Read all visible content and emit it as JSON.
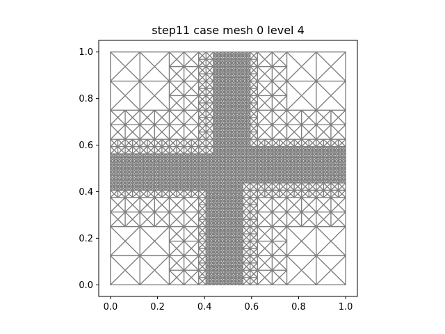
{
  "title": "step11 case mesh 0 level 4",
  "x_ticks": [
    {
      "value": 0.0,
      "label": "0.0"
    },
    {
      "value": 0.2,
      "label": "0.2"
    },
    {
      "value": 0.4,
      "label": "0.4"
    },
    {
      "value": 0.6,
      "label": "0.6"
    },
    {
      "value": 0.8,
      "label": "0.8"
    },
    {
      "value": 1.0,
      "label": "1.0"
    }
  ],
  "y_ticks": [
    {
      "value": 0.0,
      "label": "0.0"
    },
    {
      "value": 0.2,
      "label": "0.2"
    },
    {
      "value": 0.4,
      "label": "0.4"
    },
    {
      "value": 0.6,
      "label": "0.6"
    },
    {
      "value": 0.8,
      "label": "0.8"
    },
    {
      "value": 1.0,
      "label": "1.0"
    }
  ],
  "xlim": [
    -0.05,
    1.05
  ],
  "ylim": [
    -0.05,
    1.05
  ],
  "domain": [
    0,
    1
  ],
  "mesh_color": "#808080",
  "refinement_bands": [
    {
      "orientation": "horizontal",
      "from": 0.0,
      "to": 0.5,
      "band": [
        0.43,
        0.53
      ]
    },
    {
      "orientation": "horizontal",
      "from": 0.5,
      "to": 1.0,
      "band": [
        0.47,
        0.57
      ]
    },
    {
      "orientation": "vertical",
      "from": 0.0,
      "to": 0.5,
      "band": [
        0.43,
        0.53
      ]
    },
    {
      "orientation": "vertical",
      "from": 0.5,
      "to": 1.0,
      "band": [
        0.47,
        0.57
      ]
    }
  ]
}
